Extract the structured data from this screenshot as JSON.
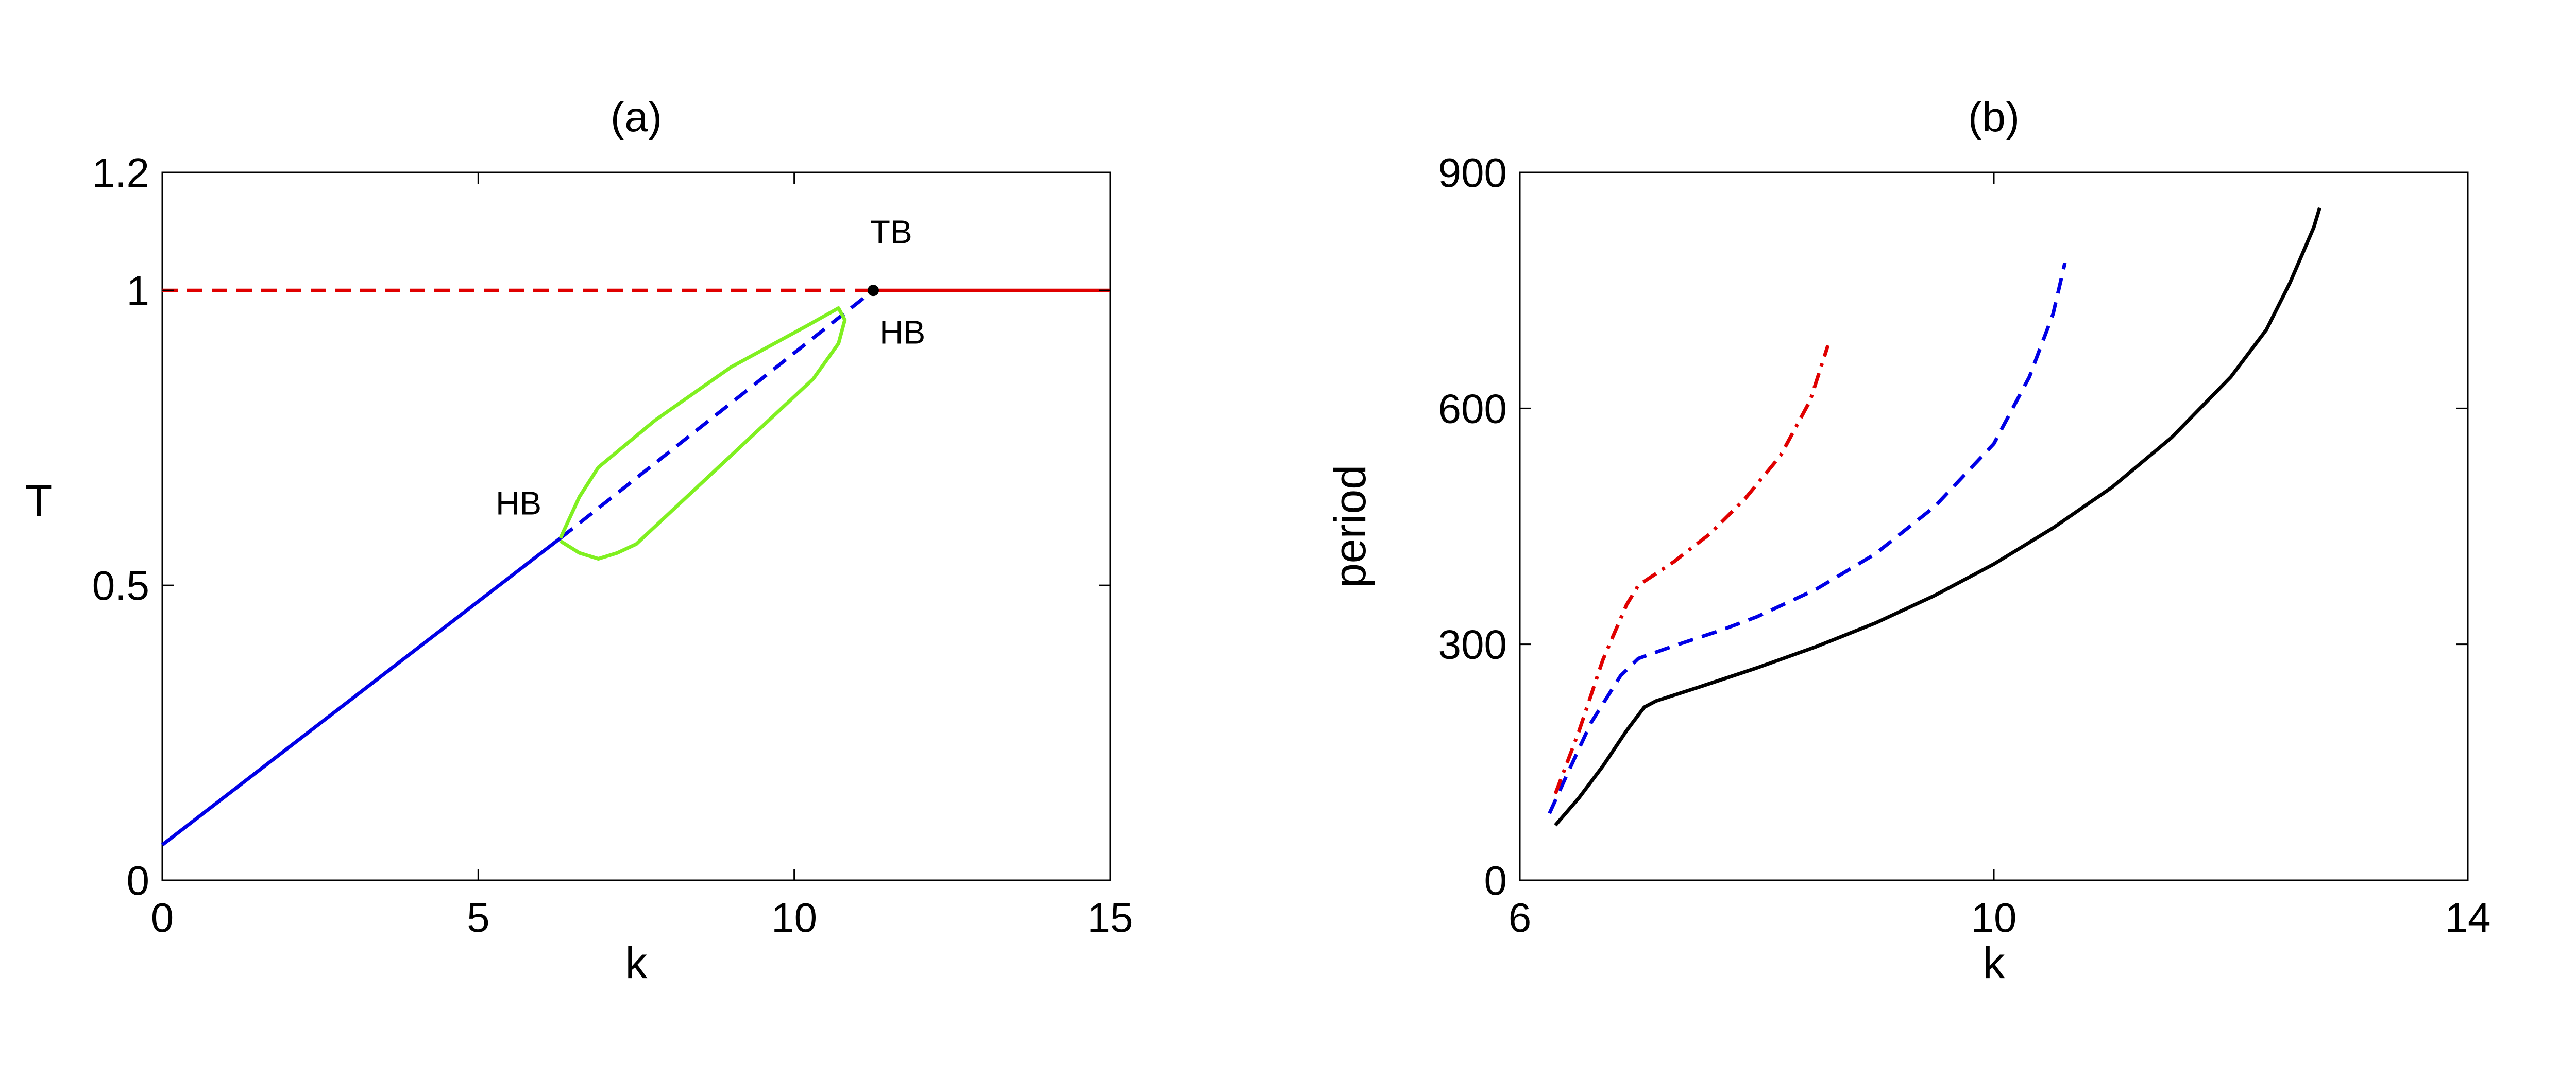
{
  "figure": {
    "colors": {
      "red": "#e00000",
      "blue": "#0000e6",
      "green": "#80f020",
      "black": "#000000"
    }
  },
  "chart_data": [
    {
      "type": "line",
      "title": "(a)",
      "xlabel": "k",
      "ylabel": "T",
      "xlim": [
        0,
        15
      ],
      "ylim": [
        0,
        1.2
      ],
      "xticks": [
        0,
        5,
        10,
        15
      ],
      "yticks": [
        0,
        0.5,
        1,
        1.2
      ],
      "xtick_labels": [
        "0",
        "5",
        "10",
        "15"
      ],
      "ytick_labels": [
        "0",
        "0.5",
        "1",
        "1.2"
      ],
      "grid": false,
      "series": [
        {
          "name": "T=1 unstable",
          "color": "#e00000",
          "style": "dashed",
          "points": [
            [
              0,
              1.0
            ],
            [
              11.25,
              1.0
            ]
          ]
        },
        {
          "name": "T=1 stable",
          "color": "#e00000",
          "style": "solid",
          "points": [
            [
              11.25,
              1.0
            ],
            [
              15,
              1.0
            ]
          ]
        },
        {
          "name": "equilibrium stable",
          "color": "#0000e6",
          "style": "solid",
          "points": [
            [
              0,
              0.06
            ],
            [
              6.3,
              0.58
            ]
          ]
        },
        {
          "name": "equilibrium unstable",
          "color": "#0000e6",
          "style": "dashed",
          "points": [
            [
              6.3,
              0.58
            ],
            [
              11.25,
              1.0
            ]
          ]
        },
        {
          "name": "limit cycle max/min",
          "color": "#80f020",
          "style": "solid",
          "points": [
            [
              6.3,
              0.58
            ],
            [
              6.6,
              0.65
            ],
            [
              6.9,
              0.7
            ],
            [
              7.8,
              0.78
            ],
            [
              9.0,
              0.87
            ],
            [
              10.2,
              0.94
            ],
            [
              10.7,
              0.97
            ],
            [
              10.8,
              0.95
            ],
            [
              10.7,
              0.91
            ],
            [
              10.3,
              0.85
            ],
            [
              9.5,
              0.77
            ],
            [
              8.3,
              0.65
            ],
            [
              7.5,
              0.57
            ],
            [
              7.2,
              0.555
            ],
            [
              6.9,
              0.545
            ],
            [
              6.6,
              0.555
            ],
            [
              6.3,
              0.575
            ]
          ]
        }
      ],
      "markers": [
        {
          "name": "TB point",
          "x": 11.25,
          "y": 1.0,
          "color": "#000000"
        }
      ],
      "annotations": [
        {
          "text": "TB",
          "x": 11.2,
          "y": 1.08
        },
        {
          "text": "HB",
          "x": 11.35,
          "y": 0.91
        },
        {
          "text": "HB",
          "x": 6.0,
          "y": 0.62
        }
      ]
    },
    {
      "type": "line",
      "title": "(b)",
      "xlabel": "k",
      "ylabel": "period",
      "xlim": [
        6,
        14
      ],
      "ylim": [
        0,
        900
      ],
      "xticks": [
        6,
        10,
        14
      ],
      "yticks": [
        0,
        300,
        600,
        900
      ],
      "xtick_labels": [
        "6",
        "10",
        "14"
      ],
      "ytick_labels": [
        "0",
        "300",
        "600",
        "900"
      ],
      "grid": false,
      "series": [
        {
          "name": "solid black",
          "color": "#000000",
          "style": "solid",
          "points": [
            [
              6.3,
              70
            ],
            [
              6.5,
              105
            ],
            [
              6.7,
              145
            ],
            [
              6.9,
              190
            ],
            [
              7.05,
              220
            ],
            [
              7.15,
              228
            ],
            [
              7.5,
              245
            ],
            [
              8.0,
              270
            ],
            [
              8.5,
              297
            ],
            [
              9.0,
              327
            ],
            [
              9.5,
              362
            ],
            [
              10.0,
              402
            ],
            [
              10.5,
              448
            ],
            [
              11.0,
              500
            ],
            [
              11.5,
              563
            ],
            [
              12.0,
              640
            ],
            [
              12.3,
              700
            ],
            [
              12.5,
              760
            ],
            [
              12.7,
              830
            ],
            [
              12.75,
              855
            ]
          ]
        },
        {
          "name": "dashed blue",
          "color": "#0000e6",
          "style": "dashed",
          "points": [
            [
              6.25,
              85
            ],
            [
              6.4,
              135
            ],
            [
              6.6,
              200
            ],
            [
              6.85,
              260
            ],
            [
              7.0,
              282
            ],
            [
              7.3,
              298
            ],
            [
              7.7,
              318
            ],
            [
              8.0,
              335
            ],
            [
              8.5,
              370
            ],
            [
              9.0,
              415
            ],
            [
              9.5,
              475
            ],
            [
              10.0,
              555
            ],
            [
              10.3,
              640
            ],
            [
              10.5,
              720
            ],
            [
              10.6,
              785
            ]
          ]
        },
        {
          "name": "dash-dot red",
          "color": "#e00000",
          "style": "dashdot",
          "points": [
            [
              6.3,
              110
            ],
            [
              6.5,
              190
            ],
            [
              6.7,
              280
            ],
            [
              6.9,
              350
            ],
            [
              7.0,
              375
            ],
            [
              7.3,
              405
            ],
            [
              7.6,
              440
            ],
            [
              7.9,
              485
            ],
            [
              8.2,
              540
            ],
            [
              8.45,
              610
            ],
            [
              8.6,
              680
            ]
          ]
        }
      ],
      "markers": [],
      "annotations": []
    }
  ]
}
